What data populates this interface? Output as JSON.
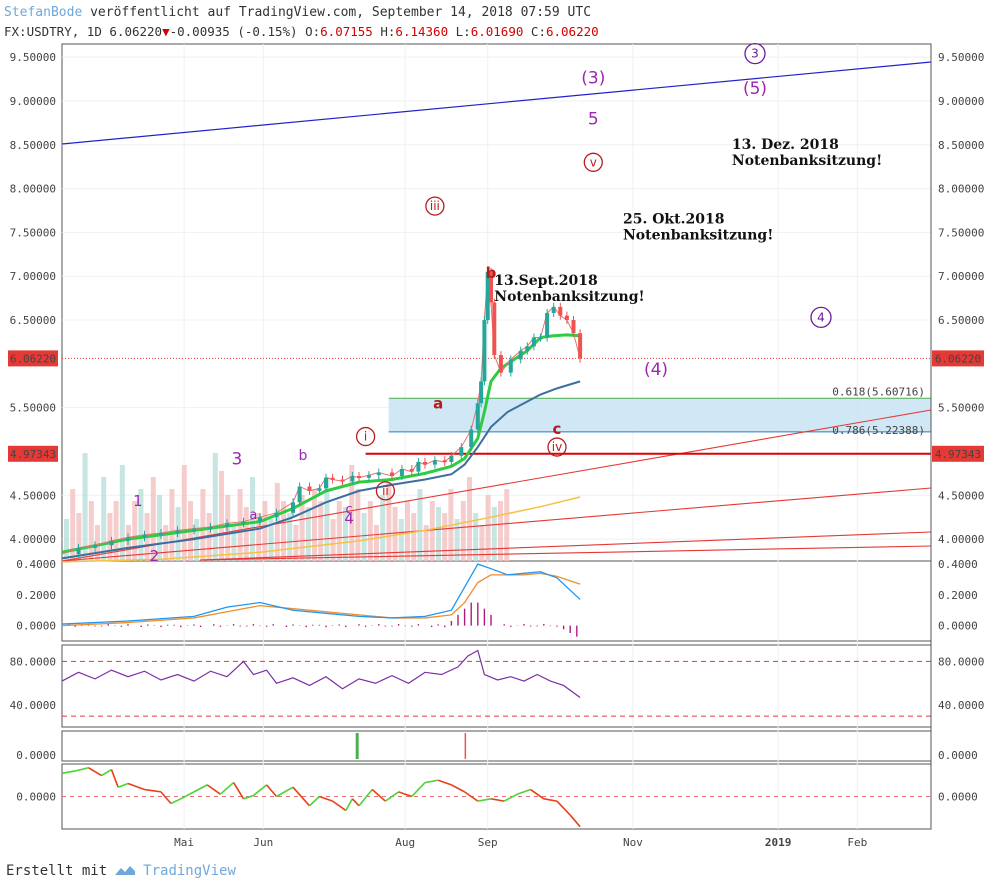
{
  "header": {
    "author": "StefanBode",
    "published": "veröffentlicht auf TradingView.com, September 14, 2018 07:59 UTC",
    "symbol": "FX:USDTRY",
    "interval": "1D",
    "last": "6.06220",
    "change_arrow": "▼",
    "change": "-0.00935 (-0.15%)",
    "open_label": "O:",
    "open": "6.07155",
    "high_label": "H:",
    "high": "6.14360",
    "low_label": "L:",
    "low": "6.01690",
    "close_label": "C:",
    "close": "6.06220"
  },
  "footer": {
    "created_with": "Erstellt mit",
    "brand": "TradingView"
  },
  "colors": {
    "up": "#26a69a",
    "down": "#ef5350",
    "fib_fill": "#c8e3f3",
    "trend_blue": "#2222cc",
    "trend_red": "#e53935",
    "wave_purple": "#9c27b0",
    "wave_red": "#b71c1c"
  },
  "chart_data": {
    "type": "line",
    "title": "FX:USDTRY 1D",
    "x_labels": [
      "Mai",
      "Jun",
      "Aug",
      "Sep",
      "Nov",
      "2019",
      "Feb"
    ],
    "main": {
      "y_ticks": [
        "9.50000",
        "9.00000",
        "8.50000",
        "8.00000",
        "7.50000",
        "7.00000",
        "6.50000",
        "5.50000",
        "4.50000",
        "4.00000"
      ],
      "y_range": [
        3.75,
        9.65
      ],
      "price_badge": "6.06220",
      "level_badge": "4.97343",
      "level_value": 4.97343,
      "price_value": 6.0622,
      "fib": [
        {
          "label": "0.618(5.60716)",
          "value": 5.60716
        },
        {
          "label": "0.786(5.22388)",
          "value": 5.22388
        }
      ],
      "close_series": [
        [
          0,
          3.83
        ],
        [
          5,
          3.9
        ],
        [
          10,
          3.93
        ],
        [
          15,
          3.98
        ],
        [
          20,
          4.02
        ],
        [
          25,
          4.05
        ],
        [
          30,
          4.07
        ],
        [
          35,
          4.1
        ],
        [
          40,
          4.12
        ],
        [
          45,
          4.14
        ],
        [
          50,
          4.18
        ],
        [
          55,
          4.2
        ],
        [
          60,
          4.25
        ],
        [
          65,
          4.3
        ],
        [
          70,
          4.42
        ],
        [
          72,
          4.6
        ],
        [
          75,
          4.55
        ],
        [
          78,
          4.58
        ],
        [
          80,
          4.7
        ],
        [
          82,
          4.68
        ],
        [
          85,
          4.66
        ],
        [
          88,
          4.72
        ],
        [
          90,
          4.7
        ],
        [
          93,
          4.73
        ],
        [
          96,
          4.76
        ],
        [
          100,
          4.72
        ],
        [
          103,
          4.8
        ],
        [
          106,
          4.77
        ],
        [
          108,
          4.88
        ],
        [
          110,
          4.85
        ],
        [
          113,
          4.9
        ],
        [
          116,
          4.88
        ],
        [
          118,
          4.95
        ],
        [
          121,
          5.05
        ],
        [
          124,
          5.25
        ],
        [
          126,
          5.55
        ],
        [
          127,
          5.8
        ],
        [
          128,
          6.5
        ],
        [
          129,
          7.05
        ],
        [
          130,
          6.7
        ],
        [
          131,
          6.1
        ],
        [
          133,
          5.9
        ],
        [
          136,
          6.05
        ],
        [
          139,
          6.15
        ],
        [
          141,
          6.2
        ],
        [
          143,
          6.3
        ],
        [
          145,
          6.3
        ],
        [
          147,
          6.58
        ],
        [
          149,
          6.65
        ],
        [
          151,
          6.55
        ],
        [
          153,
          6.5
        ],
        [
          155,
          6.35
        ],
        [
          157,
          6.06
        ]
      ],
      "ema_short": [
        [
          0,
          3.85
        ],
        [
          20,
          4.0
        ],
        [
          40,
          4.1
        ],
        [
          60,
          4.2
        ],
        [
          70,
          4.35
        ],
        [
          80,
          4.55
        ],
        [
          90,
          4.65
        ],
        [
          100,
          4.68
        ],
        [
          110,
          4.75
        ],
        [
          118,
          4.83
        ],
        [
          122,
          4.92
        ],
        [
          126,
          5.15
        ],
        [
          128,
          5.45
        ],
        [
          130,
          5.8
        ],
        [
          133,
          5.95
        ],
        [
          137,
          6.05
        ],
        [
          141,
          6.15
        ],
        [
          145,
          6.3
        ],
        [
          149,
          6.32
        ],
        [
          153,
          6.33
        ],
        [
          157,
          6.32
        ]
      ],
      "sma_mid": [
        [
          0,
          3.78
        ],
        [
          20,
          3.9
        ],
        [
          40,
          4.0
        ],
        [
          60,
          4.12
        ],
        [
          70,
          4.25
        ],
        [
          80,
          4.42
        ],
        [
          90,
          4.55
        ],
        [
          100,
          4.62
        ],
        [
          110,
          4.68
        ],
        [
          118,
          4.74
        ],
        [
          122,
          4.85
        ],
        [
          126,
          5.05
        ],
        [
          130,
          5.28
        ],
        [
          135,
          5.45
        ],
        [
          140,
          5.55
        ],
        [
          145,
          5.65
        ],
        [
          150,
          5.72
        ],
        [
          157,
          5.8
        ]
      ],
      "sma_long": [
        [
          0,
          3.74
        ],
        [
          30,
          3.77
        ],
        [
          60,
          3.85
        ],
        [
          90,
          3.98
        ],
        [
          110,
          4.1
        ],
        [
          130,
          4.25
        ],
        [
          145,
          4.37
        ],
        [
          157,
          4.48
        ]
      ],
      "volume": [
        0.35,
        0.6,
        0.4,
        0.9,
        0.5,
        0.3,
        0.7,
        0.4,
        0.5,
        0.8,
        0.3,
        0.5,
        0.6,
        0.4,
        0.7,
        0.55,
        0.3,
        0.6,
        0.45,
        0.8,
        0.5,
        0.35,
        0.6,
        0.4,
        0.9,
        0.75,
        0.55,
        0.3,
        0.6,
        0.45,
        0.7,
        0.4,
        0.5,
        0.35,
        0.65,
        0.5,
        0.4,
        0.3,
        0.55,
        0.45,
        0.6,
        0.5,
        0.7,
        0.35,
        0.5,
        0.45,
        0.8,
        0.6,
        0.4,
        0.5,
        0.3,
        0.55,
        0.65,
        0.45,
        0.35,
        0.5,
        0.4,
        0.6,
        0.3,
        0.5,
        0.45,
        0.4,
        0.6,
        0.35,
        0.5,
        0.7,
        0.4,
        0.3,
        0.55,
        0.45,
        0.5,
        0.6
      ],
      "labels": [
        {
          "t": "(3)",
          "d": 161,
          "v": 9.2,
          "color": "#9c27b0",
          "size": 17
        },
        {
          "t": "5",
          "d": 161,
          "v": 8.73,
          "color": "#9c27b0",
          "size": 17
        },
        {
          "t": "(5)",
          "d": 210,
          "v": 9.08,
          "color": "#9c27b0",
          "size": 17
        },
        {
          "t": "(4)",
          "d": 180,
          "v": 5.87,
          "color": "#9c27b0",
          "size": 17
        },
        {
          "t": "3",
          "d": 53,
          "v": 4.85,
          "color": "#9c27b0",
          "size": 17
        },
        {
          "t": "1",
          "d": 23,
          "v": 4.38,
          "color": "#9c27b0",
          "size": 15
        },
        {
          "t": "2",
          "d": 28,
          "v": 3.75,
          "color": "#9c27b0",
          "size": 15
        },
        {
          "t": "4",
          "d": 87,
          "v": 4.18,
          "color": "#9c27b0",
          "size": 15
        },
        {
          "t": "b",
          "d": 73,
          "v": 4.9,
          "color": "#9c27b0",
          "size": 14
        },
        {
          "t": "a",
          "d": 58,
          "v": 4.23,
          "color": "#9c27b0",
          "size": 13
        },
        {
          "t": "c",
          "d": 87,
          "v": 4.29,
          "color": "#9c27b0",
          "size": 13
        },
        {
          "t": "a",
          "d": 114,
          "v": 5.49,
          "color": "#b71c1c",
          "size": 15
        },
        {
          "t": "b",
          "d": 130,
          "v": 6.98,
          "color": "#b71c1c",
          "size": 15
        },
        {
          "t": "c",
          "d": 150,
          "v": 5.2,
          "color": "#b71c1c",
          "size": 15
        }
      ],
      "circled": [
        {
          "t": "3",
          "d": 210,
          "v": 9.54,
          "color": "#6a1b9a",
          "r": 10
        },
        {
          "t": "4",
          "d": 230,
          "v": 6.53,
          "color": "#6a1b9a",
          "r": 10
        },
        {
          "t": "v",
          "d": 161,
          "v": 8.3,
          "color": "#b71c1c",
          "r": 9
        },
        {
          "t": "iii",
          "d": 113,
          "v": 7.8,
          "color": "#b71c1c",
          "r": 9
        },
        {
          "t": "i",
          "d": 92,
          "v": 5.17,
          "color": "#b71c1c",
          "r": 9
        },
        {
          "t": "ii",
          "d": 98,
          "v": 4.55,
          "color": "#b71c1c",
          "r": 9
        },
        {
          "t": "iv",
          "d": 150,
          "v": 5.05,
          "color": "#b71c1c",
          "r": 9
        }
      ],
      "annotations": [
        {
          "lines": [
            "13.Sept.2018",
            "Notenbanksitzung!"
          ],
          "d": 131,
          "v": 6.9
        },
        {
          "lines": [
            "25. Okt.2018",
            "Notenbanksitzung!"
          ],
          "d": 170,
          "v": 7.6
        },
        {
          "lines": [
            "13. Dez. 2018",
            "Notenbanksitzung!"
          ],
          "d": 203,
          "v": 8.45
        }
      ]
    },
    "macd": {
      "y_ticks": [
        "0.4000",
        "0.2000",
        "0.0000"
      ],
      "y_range": [
        -0.1,
        0.42
      ],
      "macd_line": [
        [
          0,
          0.01
        ],
        [
          20,
          0.03
        ],
        [
          40,
          0.06
        ],
        [
          50,
          0.12
        ],
        [
          60,
          0.15
        ],
        [
          70,
          0.1
        ],
        [
          80,
          0.08
        ],
        [
          90,
          0.06
        ],
        [
          100,
          0.05
        ],
        [
          110,
          0.06
        ],
        [
          118,
          0.1
        ],
        [
          122,
          0.25
        ],
        [
          126,
          0.4
        ],
        [
          130,
          0.37
        ],
        [
          135,
          0.33
        ],
        [
          140,
          0.34
        ],
        [
          145,
          0.35
        ],
        [
          150,
          0.31
        ],
        [
          157,
          0.17
        ]
      ],
      "signal_line": [
        [
          0,
          0.0
        ],
        [
          20,
          0.02
        ],
        [
          40,
          0.05
        ],
        [
          50,
          0.09
        ],
        [
          60,
          0.13
        ],
        [
          70,
          0.11
        ],
        [
          80,
          0.09
        ],
        [
          90,
          0.07
        ],
        [
          100,
          0.05
        ],
        [
          110,
          0.05
        ],
        [
          118,
          0.07
        ],
        [
          122,
          0.15
        ],
        [
          126,
          0.28
        ],
        [
          130,
          0.33
        ],
        [
          135,
          0.33
        ],
        [
          140,
          0.33
        ],
        [
          145,
          0.34
        ],
        [
          150,
          0.32
        ],
        [
          157,
          0.27
        ]
      ]
    },
    "rsi": {
      "y_ticks": [
        "80.0000",
        "40.0000"
      ],
      "y_range": [
        20,
        95
      ],
      "upper": 80,
      "lower": 30,
      "series": [
        [
          0,
          62
        ],
        [
          5,
          70
        ],
        [
          10,
          64
        ],
        [
          15,
          72
        ],
        [
          20,
          66
        ],
        [
          25,
          71
        ],
        [
          30,
          63
        ],
        [
          35,
          68
        ],
        [
          40,
          62
        ],
        [
          45,
          71
        ],
        [
          50,
          66
        ],
        [
          55,
          80
        ],
        [
          58,
          68
        ],
        [
          62,
          72
        ],
        [
          65,
          60
        ],
        [
          70,
          65
        ],
        [
          75,
          58
        ],
        [
          80,
          66
        ],
        [
          85,
          55
        ],
        [
          90,
          64
        ],
        [
          95,
          60
        ],
        [
          100,
          67
        ],
        [
          105,
          60
        ],
        [
          110,
          70
        ],
        [
          115,
          68
        ],
        [
          120,
          75
        ],
        [
          123,
          85
        ],
        [
          126,
          90
        ],
        [
          128,
          68
        ],
        [
          132,
          63
        ],
        [
          136,
          66
        ],
        [
          140,
          62
        ],
        [
          144,
          68
        ],
        [
          148,
          62
        ],
        [
          152,
          58
        ],
        [
          157,
          47
        ]
      ]
    },
    "signal": {
      "y_ticks": [
        "0.0000"
      ],
      "bars": [
        {
          "d": 89,
          "color": "#4caf50"
        },
        {
          "d": 122,
          "color": "#ef5350"
        }
      ]
    },
    "osc": {
      "y_ticks": [
        "0.0000"
      ],
      "y_range": [
        -0.7,
        0.7
      ],
      "series": [
        [
          0,
          0.5
        ],
        [
          4,
          0.55
        ],
        [
          8,
          0.62
        ],
        [
          12,
          0.45
        ],
        [
          15,
          0.58
        ],
        [
          17,
          0.2
        ],
        [
          20,
          0.28
        ],
        [
          25,
          0.15
        ],
        [
          30,
          0.1
        ],
        [
          33,
          -0.15
        ],
        [
          36,
          -0.05
        ],
        [
          40,
          0.1
        ],
        [
          44,
          0.25
        ],
        [
          48,
          0.05
        ],
        [
          52,
          0.3
        ],
        [
          55,
          -0.05
        ],
        [
          58,
          0.02
        ],
        [
          62,
          0.25
        ],
        [
          65,
          0.0
        ],
        [
          70,
          0.2
        ],
        [
          75,
          -0.2
        ],
        [
          78,
          0.0
        ],
        [
          82,
          -0.1
        ],
        [
          86,
          -0.3
        ],
        [
          88,
          -0.05
        ],
        [
          90,
          -0.2
        ],
        [
          94,
          0.15
        ],
        [
          98,
          -0.1
        ],
        [
          102,
          0.1
        ],
        [
          106,
          0.0
        ],
        [
          110,
          0.3
        ],
        [
          114,
          0.35
        ],
        [
          118,
          0.25
        ],
        [
          122,
          0.1
        ],
        [
          126,
          -0.1
        ],
        [
          130,
          -0.05
        ],
        [
          134,
          -0.1
        ],
        [
          138,
          0.05
        ],
        [
          142,
          0.15
        ],
        [
          146,
          -0.05
        ],
        [
          150,
          -0.1
        ],
        [
          154,
          -0.4
        ],
        [
          157,
          -0.65
        ]
      ]
    }
  }
}
